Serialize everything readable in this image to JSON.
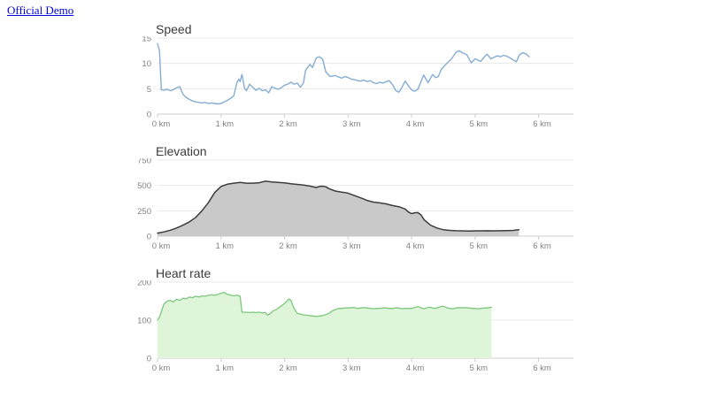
{
  "header": {
    "link_label": "Official Demo"
  },
  "chart_data": [
    {
      "type": "line",
      "title": "Speed",
      "x_unit": "km",
      "xlim": [
        0,
        6.55
      ],
      "ylim": [
        0,
        15
      ],
      "yticks": [
        0,
        5,
        10,
        15
      ],
      "ytick_labels": [
        "0",
        "5",
        "10",
        "15"
      ],
      "xticks": [
        0,
        1,
        2,
        3,
        4,
        5,
        6
      ],
      "xtick_labels": [
        "0 km",
        "1 km",
        "2 km",
        "3 km",
        "4 km",
        "5 km",
        "6 km"
      ],
      "grid": true,
      "legend": "none",
      "stroke": "#85add3",
      "fill": "none",
      "stroke_width": 1.4,
      "points": [
        [
          0,
          13.9
        ],
        [
          0.03,
          12.5
        ],
        [
          0.06,
          4.8
        ],
        [
          0.1,
          4.7
        ],
        [
          0.15,
          4.9
        ],
        [
          0.2,
          4.6
        ],
        [
          0.25,
          4.8
        ],
        [
          0.3,
          5.2
        ],
        [
          0.35,
          5.4
        ],
        [
          0.4,
          3.9
        ],
        [
          0.45,
          3.3
        ],
        [
          0.5,
          2.9
        ],
        [
          0.55,
          2.6
        ],
        [
          0.6,
          2.4
        ],
        [
          0.65,
          2.3
        ],
        [
          0.7,
          2.2
        ],
        [
          0.75,
          2.3
        ],
        [
          0.8,
          2.1
        ],
        [
          0.85,
          2.2
        ],
        [
          0.9,
          2.1
        ],
        [
          0.95,
          2.0
        ],
        [
          1.0,
          2.1
        ],
        [
          1.05,
          2.4
        ],
        [
          1.1,
          2.7
        ],
        [
          1.15,
          3.1
        ],
        [
          1.2,
          3.6
        ],
        [
          1.25,
          6.2
        ],
        [
          1.28,
          6.9
        ],
        [
          1.3,
          6.4
        ],
        [
          1.33,
          7.8
        ],
        [
          1.37,
          5.1
        ],
        [
          1.4,
          4.6
        ],
        [
          1.45,
          5.9
        ],
        [
          1.5,
          5.3
        ],
        [
          1.55,
          4.7
        ],
        [
          1.6,
          5.1
        ],
        [
          1.65,
          4.6
        ],
        [
          1.7,
          4.8
        ],
        [
          1.75,
          4.2
        ],
        [
          1.8,
          5.4
        ],
        [
          1.85,
          5.1
        ],
        [
          1.9,
          4.9
        ],
        [
          1.95,
          5.2
        ],
        [
          2.0,
          5.7
        ],
        [
          2.05,
          5.9
        ],
        [
          2.1,
          6.3
        ],
        [
          2.15,
          5.9
        ],
        [
          2.2,
          6.1
        ],
        [
          2.25,
          5.3
        ],
        [
          2.3,
          6.2
        ],
        [
          2.33,
          8.6
        ],
        [
          2.4,
          9.8
        ],
        [
          2.44,
          9.2
        ],
        [
          2.5,
          11.1
        ],
        [
          2.55,
          11.3
        ],
        [
          2.6,
          10.8
        ],
        [
          2.65,
          8.3
        ],
        [
          2.72,
          7.4
        ],
        [
          2.8,
          7.6
        ],
        [
          2.85,
          7.3
        ],
        [
          2.9,
          7.1
        ],
        [
          2.95,
          7.4
        ],
        [
          3.0,
          7.2
        ],
        [
          3.05,
          6.9
        ],
        [
          3.1,
          6.8
        ],
        [
          3.15,
          6.6
        ],
        [
          3.2,
          6.5
        ],
        [
          3.25,
          6.7
        ],
        [
          3.3,
          6.4
        ],
        [
          3.35,
          6.6
        ],
        [
          3.4,
          6.2
        ],
        [
          3.45,
          6.0
        ],
        [
          3.5,
          6.3
        ],
        [
          3.55,
          6.1
        ],
        [
          3.6,
          6.4
        ],
        [
          3.65,
          6.6
        ],
        [
          3.7,
          5.8
        ],
        [
          3.75,
          4.7
        ],
        [
          3.8,
          4.3
        ],
        [
          3.85,
          5.3
        ],
        [
          3.9,
          6.5
        ],
        [
          3.95,
          5.6
        ],
        [
          4.0,
          4.8
        ],
        [
          4.05,
          4.5
        ],
        [
          4.1,
          4.9
        ],
        [
          4.19,
          7.7
        ],
        [
          4.26,
          6.2
        ],
        [
          4.33,
          7.8
        ],
        [
          4.38,
          7.2
        ],
        [
          4.42,
          7.4
        ],
        [
          4.47,
          8.8
        ],
        [
          4.53,
          9.7
        ],
        [
          4.63,
          10.9
        ],
        [
          4.7,
          12.2
        ],
        [
          4.75,
          12.5
        ],
        [
          4.8,
          12.1
        ],
        [
          4.87,
          11.7
        ],
        [
          4.94,
          10.1
        ],
        [
          5.0,
          10.9
        ],
        [
          5.09,
          10.4
        ],
        [
          5.14,
          11.2
        ],
        [
          5.19,
          11.8
        ],
        [
          5.25,
          10.9
        ],
        [
          5.3,
          11.2
        ],
        [
          5.35,
          11.5
        ],
        [
          5.4,
          11.3
        ],
        [
          5.45,
          11.6
        ],
        [
          5.5,
          11.4
        ],
        [
          5.55,
          11.1
        ],
        [
          5.6,
          10.7
        ],
        [
          5.65,
          10.3
        ],
        [
          5.7,
          11.7
        ],
        [
          5.75,
          12.1
        ],
        [
          5.8,
          11.9
        ],
        [
          5.85,
          11.3
        ]
      ]
    },
    {
      "type": "area",
      "title": "Elevation",
      "x_unit": "km",
      "xlim": [
        0,
        6.55
      ],
      "ylim": [
        0,
        750
      ],
      "yticks": [
        0,
        250,
        500,
        750
      ],
      "ytick_labels": [
        "0",
        "250",
        "500",
        "750"
      ],
      "xticks": [
        0,
        1,
        2,
        3,
        4,
        5,
        6
      ],
      "xtick_labels": [
        "0 km",
        "1 km",
        "2 km",
        "3 km",
        "4 km",
        "5 km",
        "6 km"
      ],
      "grid": true,
      "legend": "none",
      "stroke": "#3d3d3d",
      "fill": "#c9c9c9",
      "stroke_width": 1.5,
      "points": [
        [
          0,
          30
        ],
        [
          0.1,
          42
        ],
        [
          0.2,
          58
        ],
        [
          0.3,
          80
        ],
        [
          0.4,
          108
        ],
        [
          0.5,
          140
        ],
        [
          0.6,
          185
        ],
        [
          0.7,
          250
        ],
        [
          0.8,
          330
        ],
        [
          0.9,
          430
        ],
        [
          1.0,
          490
        ],
        [
          1.1,
          512
        ],
        [
          1.2,
          522
        ],
        [
          1.3,
          530
        ],
        [
          1.4,
          522
        ],
        [
          1.5,
          522
        ],
        [
          1.6,
          527
        ],
        [
          1.65,
          535
        ],
        [
          1.7,
          542
        ],
        [
          1.75,
          538
        ],
        [
          1.8,
          534
        ],
        [
          1.9,
          530
        ],
        [
          2.0,
          526
        ],
        [
          2.1,
          516
        ],
        [
          2.2,
          510
        ],
        [
          2.3,
          503
        ],
        [
          2.4,
          494
        ],
        [
          2.5,
          480
        ],
        [
          2.55,
          490
        ],
        [
          2.6,
          493
        ],
        [
          2.65,
          487
        ],
        [
          2.7,
          468
        ],
        [
          2.8,
          445
        ],
        [
          2.9,
          433
        ],
        [
          2.95,
          430
        ],
        [
          3.0,
          424
        ],
        [
          3.1,
          400
        ],
        [
          3.2,
          378
        ],
        [
          3.3,
          352
        ],
        [
          3.4,
          336
        ],
        [
          3.5,
          328
        ],
        [
          3.6,
          318
        ],
        [
          3.7,
          302
        ],
        [
          3.8,
          290
        ],
        [
          3.9,
          268
        ],
        [
          3.95,
          238
        ],
        [
          4.0,
          222
        ],
        [
          4.05,
          230
        ],
        [
          4.1,
          232
        ],
        [
          4.15,
          208
        ],
        [
          4.2,
          160
        ],
        [
          4.3,
          108
        ],
        [
          4.4,
          80
        ],
        [
          4.5,
          64
        ],
        [
          4.6,
          57
        ],
        [
          4.7,
          53
        ],
        [
          4.8,
          52
        ],
        [
          4.9,
          51
        ],
        [
          5.0,
          52
        ],
        [
          5.1,
          52
        ],
        [
          5.2,
          53
        ],
        [
          5.3,
          52
        ],
        [
          5.4,
          53
        ],
        [
          5.5,
          55
        ],
        [
          5.6,
          57
        ],
        [
          5.69,
          63
        ]
      ]
    },
    {
      "type": "area",
      "title": "Heart rate",
      "x_unit": "km",
      "xlim": [
        0,
        6.55
      ],
      "ylim": [
        0,
        200
      ],
      "yticks": [
        0,
        100,
        200
      ],
      "ytick_labels": [
        "0",
        "100",
        "200"
      ],
      "xticks": [
        0,
        1,
        2,
        3,
        4,
        5,
        6
      ],
      "xtick_labels": [
        "0 km",
        "1 km",
        "2 km",
        "3 km",
        "4 km",
        "5 km",
        "6 km"
      ],
      "grid": true,
      "legend": "none",
      "stroke": "#7cc87c",
      "fill": "#dff5da",
      "stroke_width": 1.3,
      "points": [
        [
          0,
          100
        ],
        [
          0.03,
          108
        ],
        [
          0.06,
          122
        ],
        [
          0.1,
          142
        ],
        [
          0.15,
          150
        ],
        [
          0.2,
          152
        ],
        [
          0.25,
          148
        ],
        [
          0.3,
          155
        ],
        [
          0.35,
          152
        ],
        [
          0.4,
          158
        ],
        [
          0.45,
          156
        ],
        [
          0.5,
          161
        ],
        [
          0.55,
          159
        ],
        [
          0.6,
          163
        ],
        [
          0.65,
          161
        ],
        [
          0.7,
          164
        ],
        [
          0.75,
          163
        ],
        [
          0.8,
          165
        ],
        [
          0.85,
          167
        ],
        [
          0.9,
          165
        ],
        [
          0.95,
          168
        ],
        [
          1.0,
          171
        ],
        [
          1.05,
          173
        ],
        [
          1.1,
          168
        ],
        [
          1.15,
          166
        ],
        [
          1.2,
          164
        ],
        [
          1.25,
          166
        ],
        [
          1.3,
          163
        ],
        [
          1.33,
          121
        ],
        [
          1.4,
          121
        ],
        [
          1.45,
          120
        ],
        [
          1.5,
          121
        ],
        [
          1.55,
          120
        ],
        [
          1.6,
          121
        ],
        [
          1.65,
          119
        ],
        [
          1.7,
          120
        ],
        [
          1.73,
          113
        ],
        [
          1.78,
          118
        ],
        [
          1.82,
          125
        ],
        [
          1.87,
          128
        ],
        [
          1.92,
          134
        ],
        [
          1.97,
          140
        ],
        [
          2.02,
          147
        ],
        [
          2.07,
          156
        ],
        [
          2.1,
          152
        ],
        [
          2.15,
          131
        ],
        [
          2.2,
          118
        ],
        [
          2.25,
          116
        ],
        [
          2.3,
          114
        ],
        [
          2.35,
          113
        ],
        [
          2.4,
          112
        ],
        [
          2.45,
          111
        ],
        [
          2.5,
          110
        ],
        [
          2.55,
          111
        ],
        [
          2.6,
          112
        ],
        [
          2.65,
          115
        ],
        [
          2.7,
          118
        ],
        [
          2.75,
          124
        ],
        [
          2.8,
          128
        ],
        [
          2.85,
          131
        ],
        [
          2.9,
          131
        ],
        [
          2.95,
          132
        ],
        [
          3.0,
          132
        ],
        [
          3.05,
          133
        ],
        [
          3.1,
          133
        ],
        [
          3.15,
          131
        ],
        [
          3.2,
          132
        ],
        [
          3.25,
          133
        ],
        [
          3.3,
          132
        ],
        [
          3.35,
          131
        ],
        [
          3.4,
          130
        ],
        [
          3.45,
          131
        ],
        [
          3.5,
          131
        ],
        [
          3.55,
          132
        ],
        [
          3.6,
          132
        ],
        [
          3.65,
          131
        ],
        [
          3.7,
          131
        ],
        [
          3.75,
          132
        ],
        [
          3.8,
          132
        ],
        [
          3.85,
          130
        ],
        [
          3.9,
          131
        ],
        [
          3.95,
          131
        ],
        [
          4.0,
          131
        ],
        [
          4.05,
          133
        ],
        [
          4.1,
          136
        ],
        [
          4.15,
          132
        ],
        [
          4.2,
          130
        ],
        [
          4.25,
          133
        ],
        [
          4.3,
          134
        ],
        [
          4.35,
          131
        ],
        [
          4.4,
          132
        ],
        [
          4.45,
          135
        ],
        [
          4.5,
          137
        ],
        [
          4.55,
          133
        ],
        [
          4.6,
          131
        ],
        [
          4.65,
          130
        ],
        [
          4.7,
          132
        ],
        [
          4.75,
          133
        ],
        [
          4.8,
          132
        ],
        [
          4.85,
          133
        ],
        [
          4.9,
          132
        ],
        [
          4.95,
          131
        ],
        [
          5.0,
          131
        ],
        [
          5.05,
          130
        ],
        [
          5.1,
          131
        ],
        [
          5.15,
          132
        ],
        [
          5.2,
          132
        ],
        [
          5.26,
          134
        ]
      ]
    }
  ]
}
